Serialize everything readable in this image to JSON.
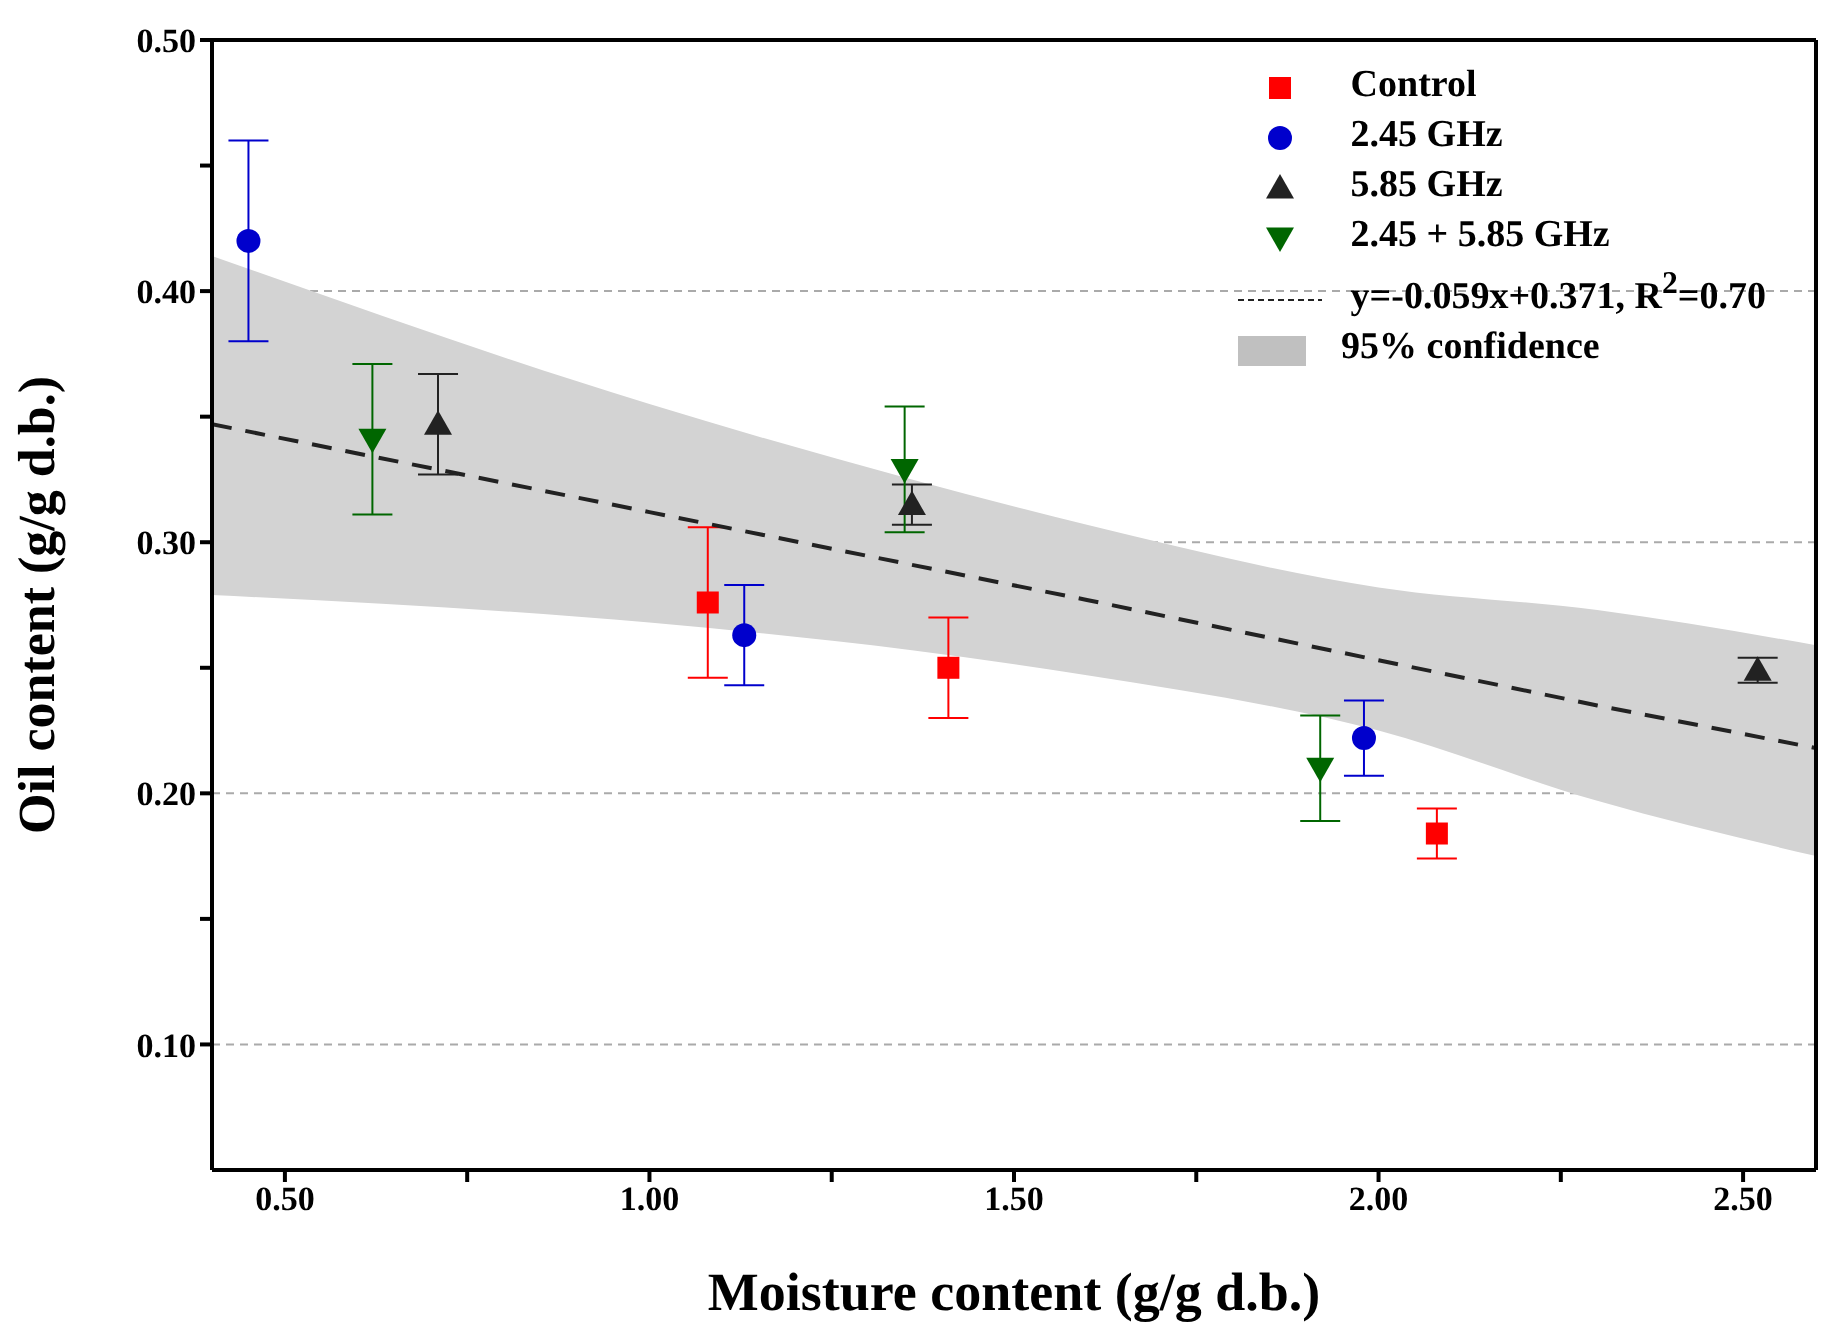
{
  "chart_data": {
    "type": "scatter",
    "xlabel": "Moisture content (g/g d.b.)",
    "ylabel": "Oil content (g/g d.b.)",
    "xlim": [
      0.4,
      2.6
    ],
    "ylim": [
      0.05,
      0.5
    ],
    "xticks": [
      {
        "value": 0.5,
        "label": "0.50"
      },
      {
        "value": 0.75,
        "label": null
      },
      {
        "value": 1.0,
        "label": "1.00"
      },
      {
        "value": 1.25,
        "label": null
      },
      {
        "value": 1.5,
        "label": "1.50"
      },
      {
        "value": 1.75,
        "label": null
      },
      {
        "value": 2.0,
        "label": "2.00"
      },
      {
        "value": 2.25,
        "label": null
      },
      {
        "value": 2.5,
        "label": "2.50"
      }
    ],
    "yticks": [
      {
        "value": 0.1,
        "label": "0.10"
      },
      {
        "value": 0.15,
        "label": null
      },
      {
        "value": 0.2,
        "label": "0.20"
      },
      {
        "value": 0.25,
        "label": null
      },
      {
        "value": 0.3,
        "label": "0.30"
      },
      {
        "value": 0.35,
        "label": null
      },
      {
        "value": 0.4,
        "label": "0.40"
      },
      {
        "value": 0.45,
        "label": null
      },
      {
        "value": 0.5,
        "label": "0.50"
      }
    ],
    "grid": "y",
    "legend": "top right",
    "annotations": [
      "95% confidence"
    ],
    "series": [
      {
        "name": "Control",
        "color": "#ff0000",
        "marker": "square",
        "x": [
          1.08,
          1.41,
          2.08
        ],
        "values": [
          0.276,
          0.25,
          0.184
        ],
        "errors": [
          0.03,
          0.02,
          0.01
        ]
      },
      {
        "name": "2.45 GHz",
        "color": "#0000cc",
        "marker": "circle",
        "x": [
          0.45,
          1.13,
          1.98
        ],
        "values": [
          0.42,
          0.263,
          0.222
        ],
        "errors": [
          0.04,
          0.02,
          0.015
        ]
      },
      {
        "name": "5.85 GHz",
        "color": "#222222",
        "marker": "triangle",
        "x": [
          0.71,
          1.36,
          2.52
        ],
        "values": [
          0.347,
          0.315,
          0.249
        ],
        "errors": [
          0.02,
          0.008,
          0.005
        ]
      },
      {
        "name": "2.45 + 5.85 GHz",
        "color": "#006600",
        "marker": "triangle-down",
        "x": [
          0.62,
          1.35,
          1.92
        ],
        "values": [
          0.341,
          0.329,
          0.21
        ],
        "errors": [
          0.03,
          0.025,
          0.021
        ]
      },
      {
        "name": "y=-0.059x+0.371, R$^{2}$=0.70",
        "type": "line",
        "line_style": "dashed",
        "color": "#222222",
        "x": [
          0.4,
          1.0,
          1.36,
          1.6,
          2.0,
          2.3,
          2.6
        ],
        "values": [
          0.347,
          0.312,
          0.291,
          0.277,
          0.253,
          0.235,
          0.218
        ],
        "lower": [
          0.279,
          0.268,
          0.257,
          0.247,
          0.225,
          0.197,
          0.175
        ],
        "upper": [
          0.414,
          0.355,
          0.325,
          0.307,
          0.282,
          0.273,
          0.259
        ]
      }
    ]
  }
}
